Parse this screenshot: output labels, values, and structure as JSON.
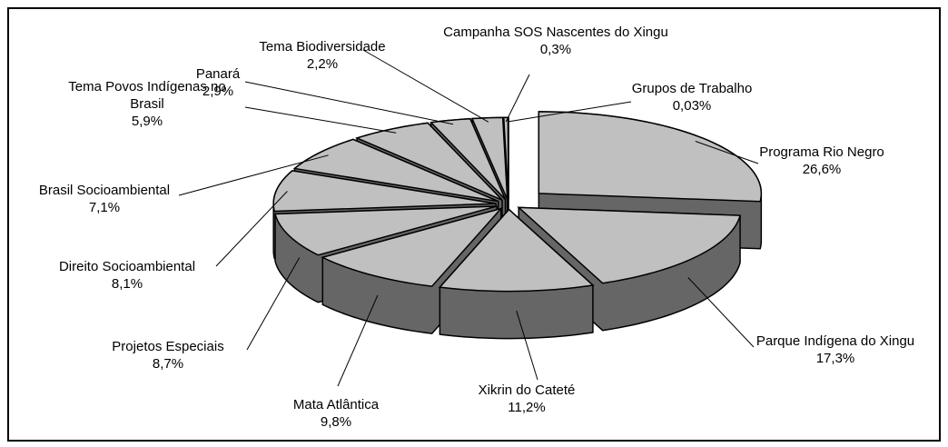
{
  "chart_data": {
    "type": "pie",
    "categories": [
      "Programa Rio Negro",
      "Parque Indígena do Xingu",
      "Xikrin do Cateté",
      "Mata Atlântica",
      "Projetos Especiais",
      "Direito Socioambiental",
      "Brasil Socioambiental",
      "Tema Povos Indígenas no Brasil",
      "Panará",
      "Tema Biodiversidade",
      "Campanha SOS Nascentes do Xingu",
      "Grupos de Trabalho"
    ],
    "values": [
      26.6,
      17.3,
      11.2,
      9.8,
      8.7,
      8.1,
      7.1,
      5.9,
      2.9,
      2.2,
      0.3,
      0.03
    ],
    "value_labels": [
      "26,6%",
      "17,3%",
      "11,2%",
      "9,8%",
      "8,7%",
      "8,1%",
      "7,1%",
      "5,9%",
      "2,9%",
      "2,2%",
      "0,3%",
      "0,03%"
    ],
    "color": "#c0c0c0"
  }
}
